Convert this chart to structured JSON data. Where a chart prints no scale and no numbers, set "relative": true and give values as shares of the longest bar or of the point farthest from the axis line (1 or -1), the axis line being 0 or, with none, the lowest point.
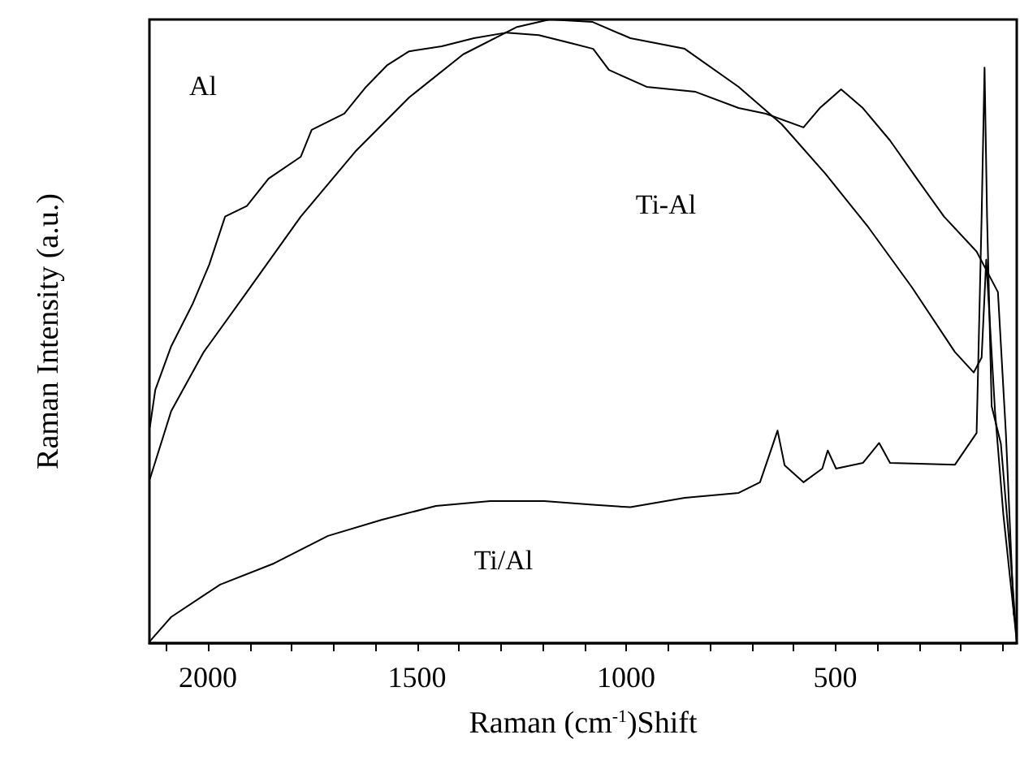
{
  "chart_data": {
    "type": "line",
    "relative": true,
    "xlabel": "Raman (cm$^{-1}$)Shift",
    "ylabel": "Raman Intensity (a.u.)",
    "xlim": [
      2140,
      66
    ],
    "xticks": [
      {
        "value": 2100,
        "label": null
      },
      2000,
      {
        "value": 1900,
        "label": null
      },
      {
        "value": 1800,
        "label": null
      },
      {
        "value": 1700,
        "label": null
      },
      {
        "value": 1600,
        "label": null
      },
      1500,
      {
        "value": 1400,
        "label": null
      },
      {
        "value": 1300,
        "label": null
      },
      {
        "value": 1200,
        "label": null
      },
      {
        "value": 1100,
        "label": null
      },
      1000,
      {
        "value": 900,
        "label": null
      },
      {
        "value": 800,
        "label": null
      },
      {
        "value": 700,
        "label": null
      },
      {
        "value": 600,
        "label": null
      },
      500,
      {
        "value": 400,
        "label": null
      },
      {
        "value": 300,
        "label": null
      },
      {
        "value": 200,
        "label": null
      },
      {
        "value": 100,
        "label": null
      }
    ],
    "marker": "none",
    "series": [
      {
        "color": "#000000",
        "x": [
          2139,
          2126,
          2088,
          2036,
          1997,
          1959,
          1907,
          1855,
          1778,
          1752,
          1674,
          1622,
          1571,
          1519,
          1441,
          1364,
          1286,
          1209,
          1131,
          1079,
          1041,
          951,
          834,
          731,
          666,
          576,
          537,
          486,
          434,
          369,
          305,
          240,
          162,
          111,
          92,
          73
        ],
        "values": [
          0.346,
          0.406,
          0.476,
          0.545,
          0.607,
          0.684,
          0.701,
          0.745,
          0.78,
          0.823,
          0.849,
          0.892,
          0.927,
          0.949,
          0.957,
          0.97,
          0.979,
          0.975,
          0.962,
          0.953,
          0.919,
          0.892,
          0.884,
          0.858,
          0.849,
          0.827,
          0.858,
          0.888,
          0.858,
          0.806,
          0.745,
          0.684,
          0.628,
          0.563,
          0.337,
          0.045
        ]
      },
      {
        "color": "#000000",
        "x": [
          2139,
          2088,
          2010,
          1907,
          1778,
          1648,
          1519,
          1390,
          1261,
          1183,
          1080,
          990,
          860,
          731,
          628,
          524,
          421,
          317,
          214,
          169,
          150,
          139,
          118,
          98,
          66
        ],
        "values": [
          0.263,
          0.372,
          0.467,
          0.563,
          0.684,
          0.788,
          0.875,
          0.944,
          0.988,
          1,
          0.996,
          0.97,
          0.953,
          0.892,
          0.832,
          0.753,
          0.667,
          0.571,
          0.467,
          0.434,
          0.458,
          0.615,
          0.372,
          0.206,
          0.003
        ]
      },
      {
        "color": "#000000",
        "x": [
          2139,
          2088,
          1971,
          1842,
          1713,
          1584,
          1455,
          1325,
          1196,
          1080,
          990,
          860,
          731,
          680,
          653,
          638,
          621,
          576,
          531,
          518,
          498,
          434,
          395,
          369,
          214,
          162,
          150,
          143,
          137,
          126,
          104,
          79,
          66
        ],
        "values": [
          0.003,
          0.042,
          0.094,
          0.128,
          0.172,
          0.198,
          0.22,
          0.228,
          0.228,
          0.222,
          0.218,
          0.233,
          0.241,
          0.258,
          0.311,
          0.341,
          0.285,
          0.258,
          0.28,
          0.309,
          0.28,
          0.289,
          0.321,
          0.289,
          0.286,
          0.337,
          0.684,
          0.923,
          0.684,
          0.38,
          0.32,
          0.122,
          0.003
        ]
      }
    ],
    "annotations": [
      "Al",
      "Ti-Al",
      "Ti/Al"
    ]
  }
}
